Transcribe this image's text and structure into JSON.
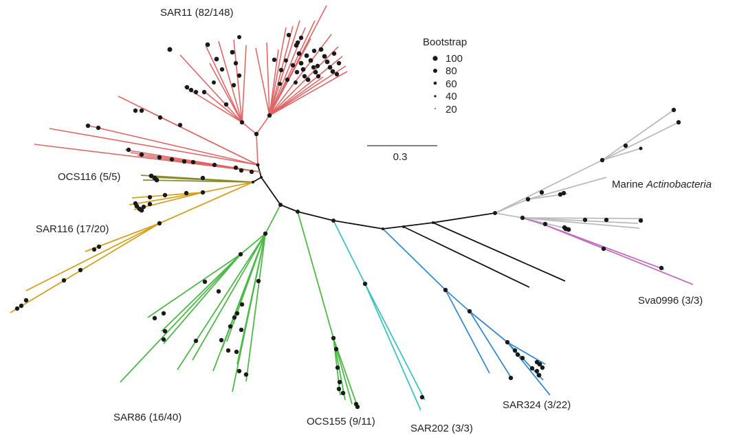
{
  "legend": {
    "title": "Bootstrap",
    "items": [
      "100",
      "80",
      "60",
      "40",
      "20"
    ]
  },
  "scale_bar": {
    "label": "0.3"
  },
  "clades": [
    {
      "id": "sar11",
      "label": "SAR11 (82/148)",
      "color": "#e06666"
    },
    {
      "id": "ocs116",
      "label": "OCS116 (5/5)",
      "color": "#8a8a2e"
    },
    {
      "id": "sar116",
      "label": "SAR116 (17/20)",
      "color": "#d4a020"
    },
    {
      "id": "sar86",
      "label": "SAR86 (16/40)",
      "color": "#4db848"
    },
    {
      "id": "ocs155",
      "label": "OCS155 (9/11)",
      "color": "#4db848"
    },
    {
      "id": "sar202",
      "label": "SAR202 (3/3)",
      "color": "#40c0c0"
    },
    {
      "id": "sar324",
      "label": "SAR324 (3/22)",
      "color": "#3a8acb"
    },
    {
      "id": "actino",
      "label_prefix": "Marine ",
      "label_italic": "Actinobacteria",
      "color": "#bbbbbb"
    },
    {
      "id": "sva0996",
      "label": "Sva0996 (3/3)",
      "color": "#c070c0"
    }
  ],
  "backbone_color": "#111111",
  "node_color": "#1a1a1a"
}
